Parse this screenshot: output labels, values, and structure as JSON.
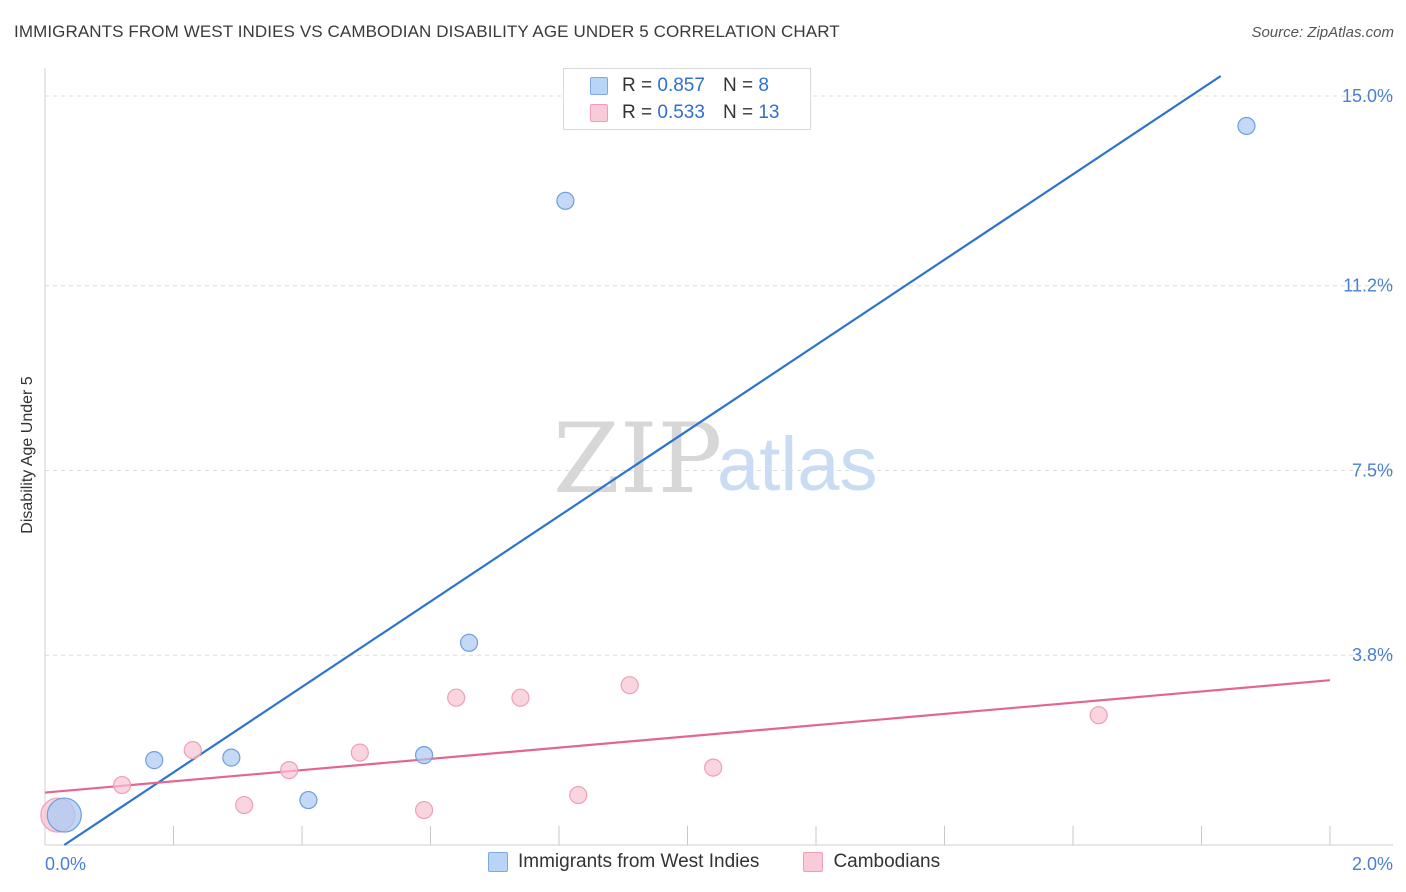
{
  "title": "IMMIGRANTS FROM WEST INDIES VS CAMBODIAN DISABILITY AGE UNDER 5 CORRELATION CHART",
  "source": "Source: ZipAtlas.com",
  "watermark": {
    "zip": "ZIP",
    "atlas": "atlas"
  },
  "legend": {
    "rows": [
      {
        "r_label": "R = ",
        "r_value": "0.857",
        "n_label": "N = ",
        "n_value": " 8",
        "color": "#b8d4f6"
      },
      {
        "r_label": "R = ",
        "r_value": "0.533",
        "n_label": "N = ",
        "n_value": "13",
        "color": "#f9cad8"
      }
    ]
  },
  "bottom_legend": {
    "series_1": "Immigrants from West Indies",
    "series_2": "Cambodians"
  },
  "chart_data": {
    "type": "scatter",
    "title": "IMMIGRANTS FROM WEST INDIES VS CAMBODIAN DISABILITY AGE UNDER 5 CORRELATION CHART",
    "xlabel": "",
    "ylabel": "Disability Age Under 5",
    "xlim": [
      0.0,
      2.0
    ],
    "ylim": [
      0.0,
      15.5
    ],
    "x_tick_labels": [
      "0.0%",
      "2.0%"
    ],
    "y_ticks": [
      3.8,
      7.5,
      11.2,
      15.0
    ],
    "y_tick_labels": [
      "3.8%",
      "7.5%",
      "11.2%",
      "15.0%"
    ],
    "grid": true,
    "series": [
      {
        "name": "Immigrants from West Indies",
        "color": "#a9c9f2",
        "stroke": "#6e9ee0",
        "line_color": "#2c74cf",
        "points": [
          {
            "x": 0.03,
            "y": 0.6,
            "size": "large"
          },
          {
            "x": 0.17,
            "y": 1.7
          },
          {
            "x": 0.29,
            "y": 1.75
          },
          {
            "x": 0.41,
            "y": 0.9
          },
          {
            "x": 0.59,
            "y": 1.8
          },
          {
            "x": 0.66,
            "y": 4.05
          },
          {
            "x": 0.81,
            "y": 12.9
          },
          {
            "x": 1.87,
            "y": 14.4
          }
        ],
        "trend": {
          "x1": 0.03,
          "y1": 0.0,
          "x2": 1.83,
          "y2": 15.4
        }
      },
      {
        "name": "Cambodians",
        "color": "#f7c3d3",
        "stroke": "#eea0b8",
        "line_color": "#e4668f",
        "points": [
          {
            "x": 0.02,
            "y": 0.6,
            "size": "large"
          },
          {
            "x": 0.12,
            "y": 1.2
          },
          {
            "x": 0.23,
            "y": 1.9
          },
          {
            "x": 0.31,
            "y": 0.8
          },
          {
            "x": 0.38,
            "y": 1.5
          },
          {
            "x": 0.49,
            "y": 1.85
          },
          {
            "x": 0.59,
            "y": 0.7
          },
          {
            "x": 0.64,
            "y": 2.95
          },
          {
            "x": 0.74,
            "y": 2.95
          },
          {
            "x": 0.83,
            "y": 1.0
          },
          {
            "x": 0.91,
            "y": 3.2
          },
          {
            "x": 1.04,
            "y": 1.55
          },
          {
            "x": 1.64,
            "y": 2.6
          }
        ],
        "trend": {
          "x1": 0.0,
          "y1": 1.05,
          "x2": 2.0,
          "y2": 3.3
        }
      }
    ]
  }
}
